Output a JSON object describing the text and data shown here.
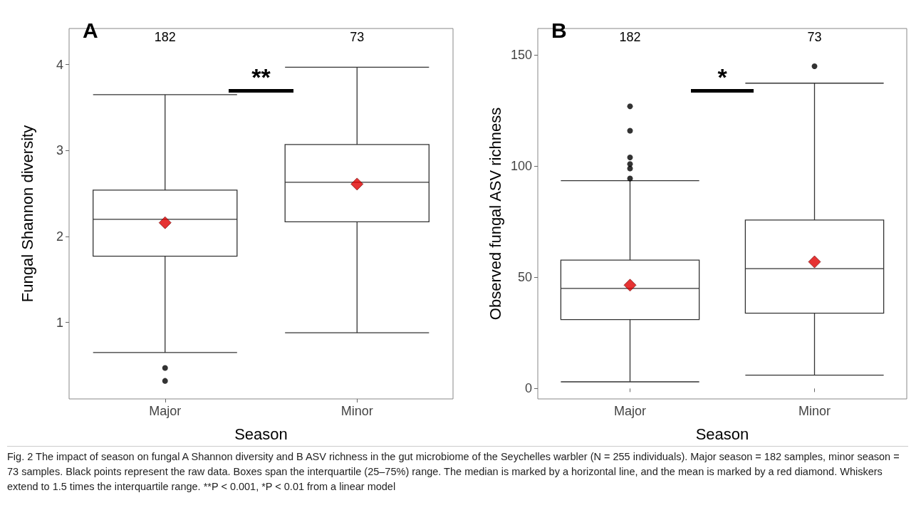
{
  "chart_data": [
    {
      "type": "box",
      "title": "A",
      "xlabel": "Season",
      "ylabel": "Fungal Shannon diversity",
      "categories": [
        "Major",
        "Minor"
      ],
      "boxes": [
        {
          "low": 0.65,
          "q1": 1.77,
          "median": 2.2,
          "q3": 2.54,
          "high": 3.65,
          "mean": 2.16,
          "outliers": [
            0.47,
            0.32
          ]
        },
        {
          "low": 0.88,
          "q1": 2.17,
          "median": 2.63,
          "q3": 3.07,
          "high": 3.97,
          "mean": 2.61
        }
      ],
      "ylim": [
        0.11,
        4.42
      ],
      "yticks": [
        1,
        2,
        3,
        4
      ],
      "grid": false,
      "annotations": [
        "182",
        "73",
        "**",
        "Fig. 2  The impact of season on fungal A Shannon diversity and B ASV richness in the gut microbiome of the Seychelles warbler (N = 255 individuals). Major season = 182 samples, minor season = 73 samples. Black points represent the raw data. Boxes span the interquartile (25–75%) range. The median is marked by a horizontal line, and the mean is marked by a red diamond. Whiskers extend to 1.5 times the interquartile range. **P < 0.001, *P < 0.01 from a linear model"
      ]
    },
    {
      "type": "box",
      "title": "B",
      "xlabel": "Season",
      "ylabel": "Observed fungal ASV richness",
      "categories": [
        "Major",
        "Minor"
      ],
      "boxes": [
        {
          "low": 3,
          "q1": 31,
          "median": 45,
          "q3": 57.8,
          "high": 93.5,
          "mean": 46.5,
          "outliers": [
            94.5,
            99,
            101,
            104,
            116,
            127
          ]
        },
        {
          "low": 6,
          "q1": 33.9,
          "median": 53.9,
          "q3": 75.8,
          "high": 137.4,
          "mean": 57,
          "outliers": [
            145
          ]
        }
      ],
      "ylim": [
        -4.7,
        162
      ],
      "yticks": [
        0,
        50,
        100,
        150
      ],
      "grid": false,
      "annotations": [
        "182",
        "73",
        "*"
      ]
    }
  ]
}
